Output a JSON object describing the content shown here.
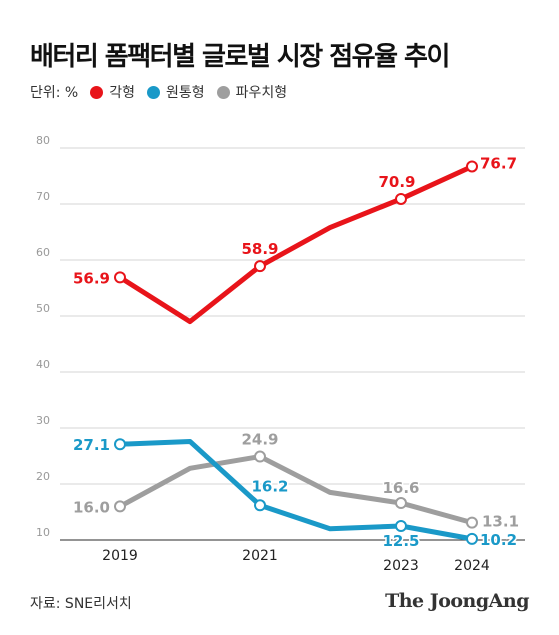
{
  "title": "배터리 폼팩터별 글로벌 시장 점유율 추이",
  "unit": "단위: %",
  "legend": [
    {
      "name": "각형",
      "color": "#e8141a"
    },
    {
      "name": "원통형",
      "color": "#1a99c8"
    },
    {
      "name": "파우치형",
      "color": "#9e9e9e"
    }
  ],
  "source": "자료: SNE리서치",
  "logo": "The JoongAng",
  "chart_data": {
    "type": "line",
    "title": "배터리 폼팩터별 글로벌 시장 점유율 추이",
    "ylabel": "단위: %",
    "ylim": [
      10,
      80
    ],
    "yticks": [
      10,
      20,
      30,
      40,
      50,
      60,
      70,
      80
    ],
    "grid": true,
    "x": [
      2019,
      2020,
      2021,
      2022,
      2023,
      2024
    ],
    "xtick_labels": [
      "2019",
      "2021",
      "2023",
      "2024"
    ],
    "series": [
      {
        "name": "각형",
        "color": "#e8141a",
        "values": [
          56.9,
          49.0,
          58.9,
          65.8,
          70.9,
          76.7
        ],
        "labels": [
          "56.9",
          "",
          "58.9",
          "",
          "70.9",
          "76.7"
        ],
        "markers": [
          true,
          false,
          true,
          false,
          true,
          true
        ]
      },
      {
        "name": "원통형",
        "color": "#1a99c8",
        "values": [
          27.1,
          27.6,
          16.2,
          12.0,
          12.5,
          10.2
        ],
        "labels": [
          "27.1",
          "",
          "16.2",
          "",
          "12.5",
          "10.2"
        ],
        "markers": [
          true,
          false,
          true,
          false,
          true,
          true
        ]
      },
      {
        "name": "파우치형",
        "color": "#9e9e9e",
        "values": [
          16.0,
          22.8,
          24.9,
          18.5,
          16.6,
          13.1
        ],
        "labels": [
          "16.0",
          "",
          "24.9",
          "",
          "16.6",
          "13.1"
        ],
        "markers": [
          true,
          false,
          true,
          false,
          true,
          true
        ]
      }
    ]
  }
}
